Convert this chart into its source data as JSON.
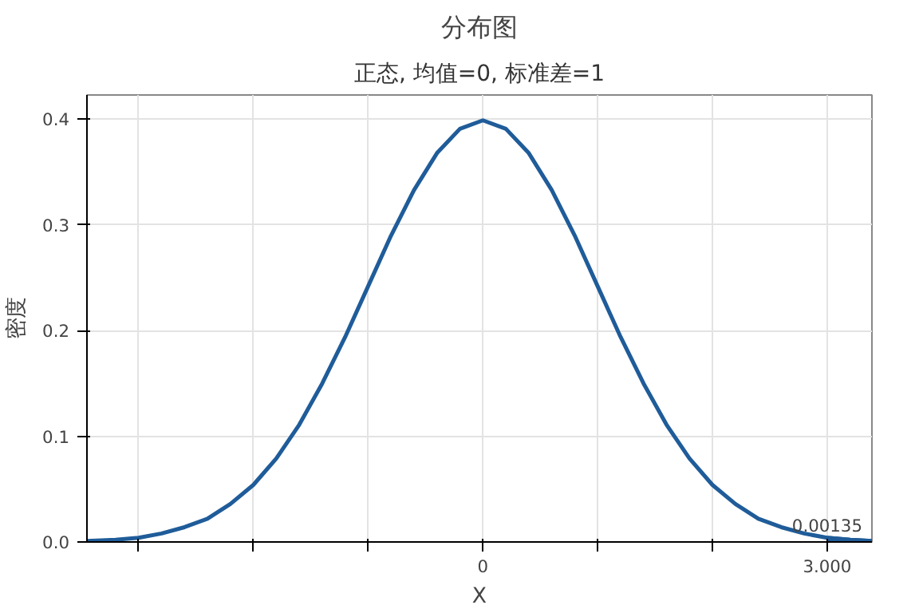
{
  "chart_data": {
    "type": "line",
    "title": "分布图",
    "subtitle": "正态, 均值=0, 标准差=1",
    "xlabel": "X",
    "ylabel": "密度",
    "series": [
      {
        "color": "#1f5c99",
        "x": [
          -3.45,
          -3.2,
          -3.0,
          -2.8,
          -2.6,
          -2.4,
          -2.2,
          -2.0,
          -1.8,
          -1.6,
          -1.4,
          -1.2,
          -1.0,
          -0.8,
          -0.6,
          -0.4,
          -0.2,
          0,
          0.2,
          0.4,
          0.6,
          0.8,
          1.0,
          1.2,
          1.4,
          1.6,
          1.8,
          2.0,
          2.2,
          2.4,
          2.6,
          2.8,
          3.0,
          3.2,
          3.39
        ],
        "values": [
          0.001,
          0.002,
          0.004,
          0.008,
          0.014,
          0.022,
          0.036,
          0.054,
          0.079,
          0.111,
          0.15,
          0.194,
          0.242,
          0.29,
          0.333,
          0.368,
          0.391,
          0.399,
          0.391,
          0.368,
          0.333,
          0.29,
          0.242,
          0.194,
          0.15,
          0.111,
          0.079,
          0.054,
          0.036,
          0.022,
          0.014,
          0.008,
          0.004,
          0.002,
          0.001
        ]
      },
      {
        "type": "area",
        "color": "#1f5c99",
        "x": [
          3.0,
          3.2,
          3.39
        ],
        "values": [
          0.004,
          0.002,
          0.001
        ]
      }
    ],
    "xlim": [
      -3.45,
      3.39
    ],
    "ylim": [
      0,
      0.423
    ],
    "xticks": [
      {
        "value": -3,
        "label": null
      },
      {
        "value": -2,
        "label": null
      },
      {
        "value": -1,
        "label": null
      },
      0,
      {
        "value": 1,
        "label": null
      },
      {
        "value": 2,
        "label": null
      },
      {
        "value": 3,
        "label": "3.000"
      }
    ],
    "yticks": [
      {
        "value": 0,
        "label": "0.0"
      },
      0.1,
      0.2,
      0.3,
      0.4
    ],
    "annotations": [
      {
        "text": "0.00135",
        "x": 3.0,
        "y": 0.004
      }
    ],
    "grid": true
  }
}
